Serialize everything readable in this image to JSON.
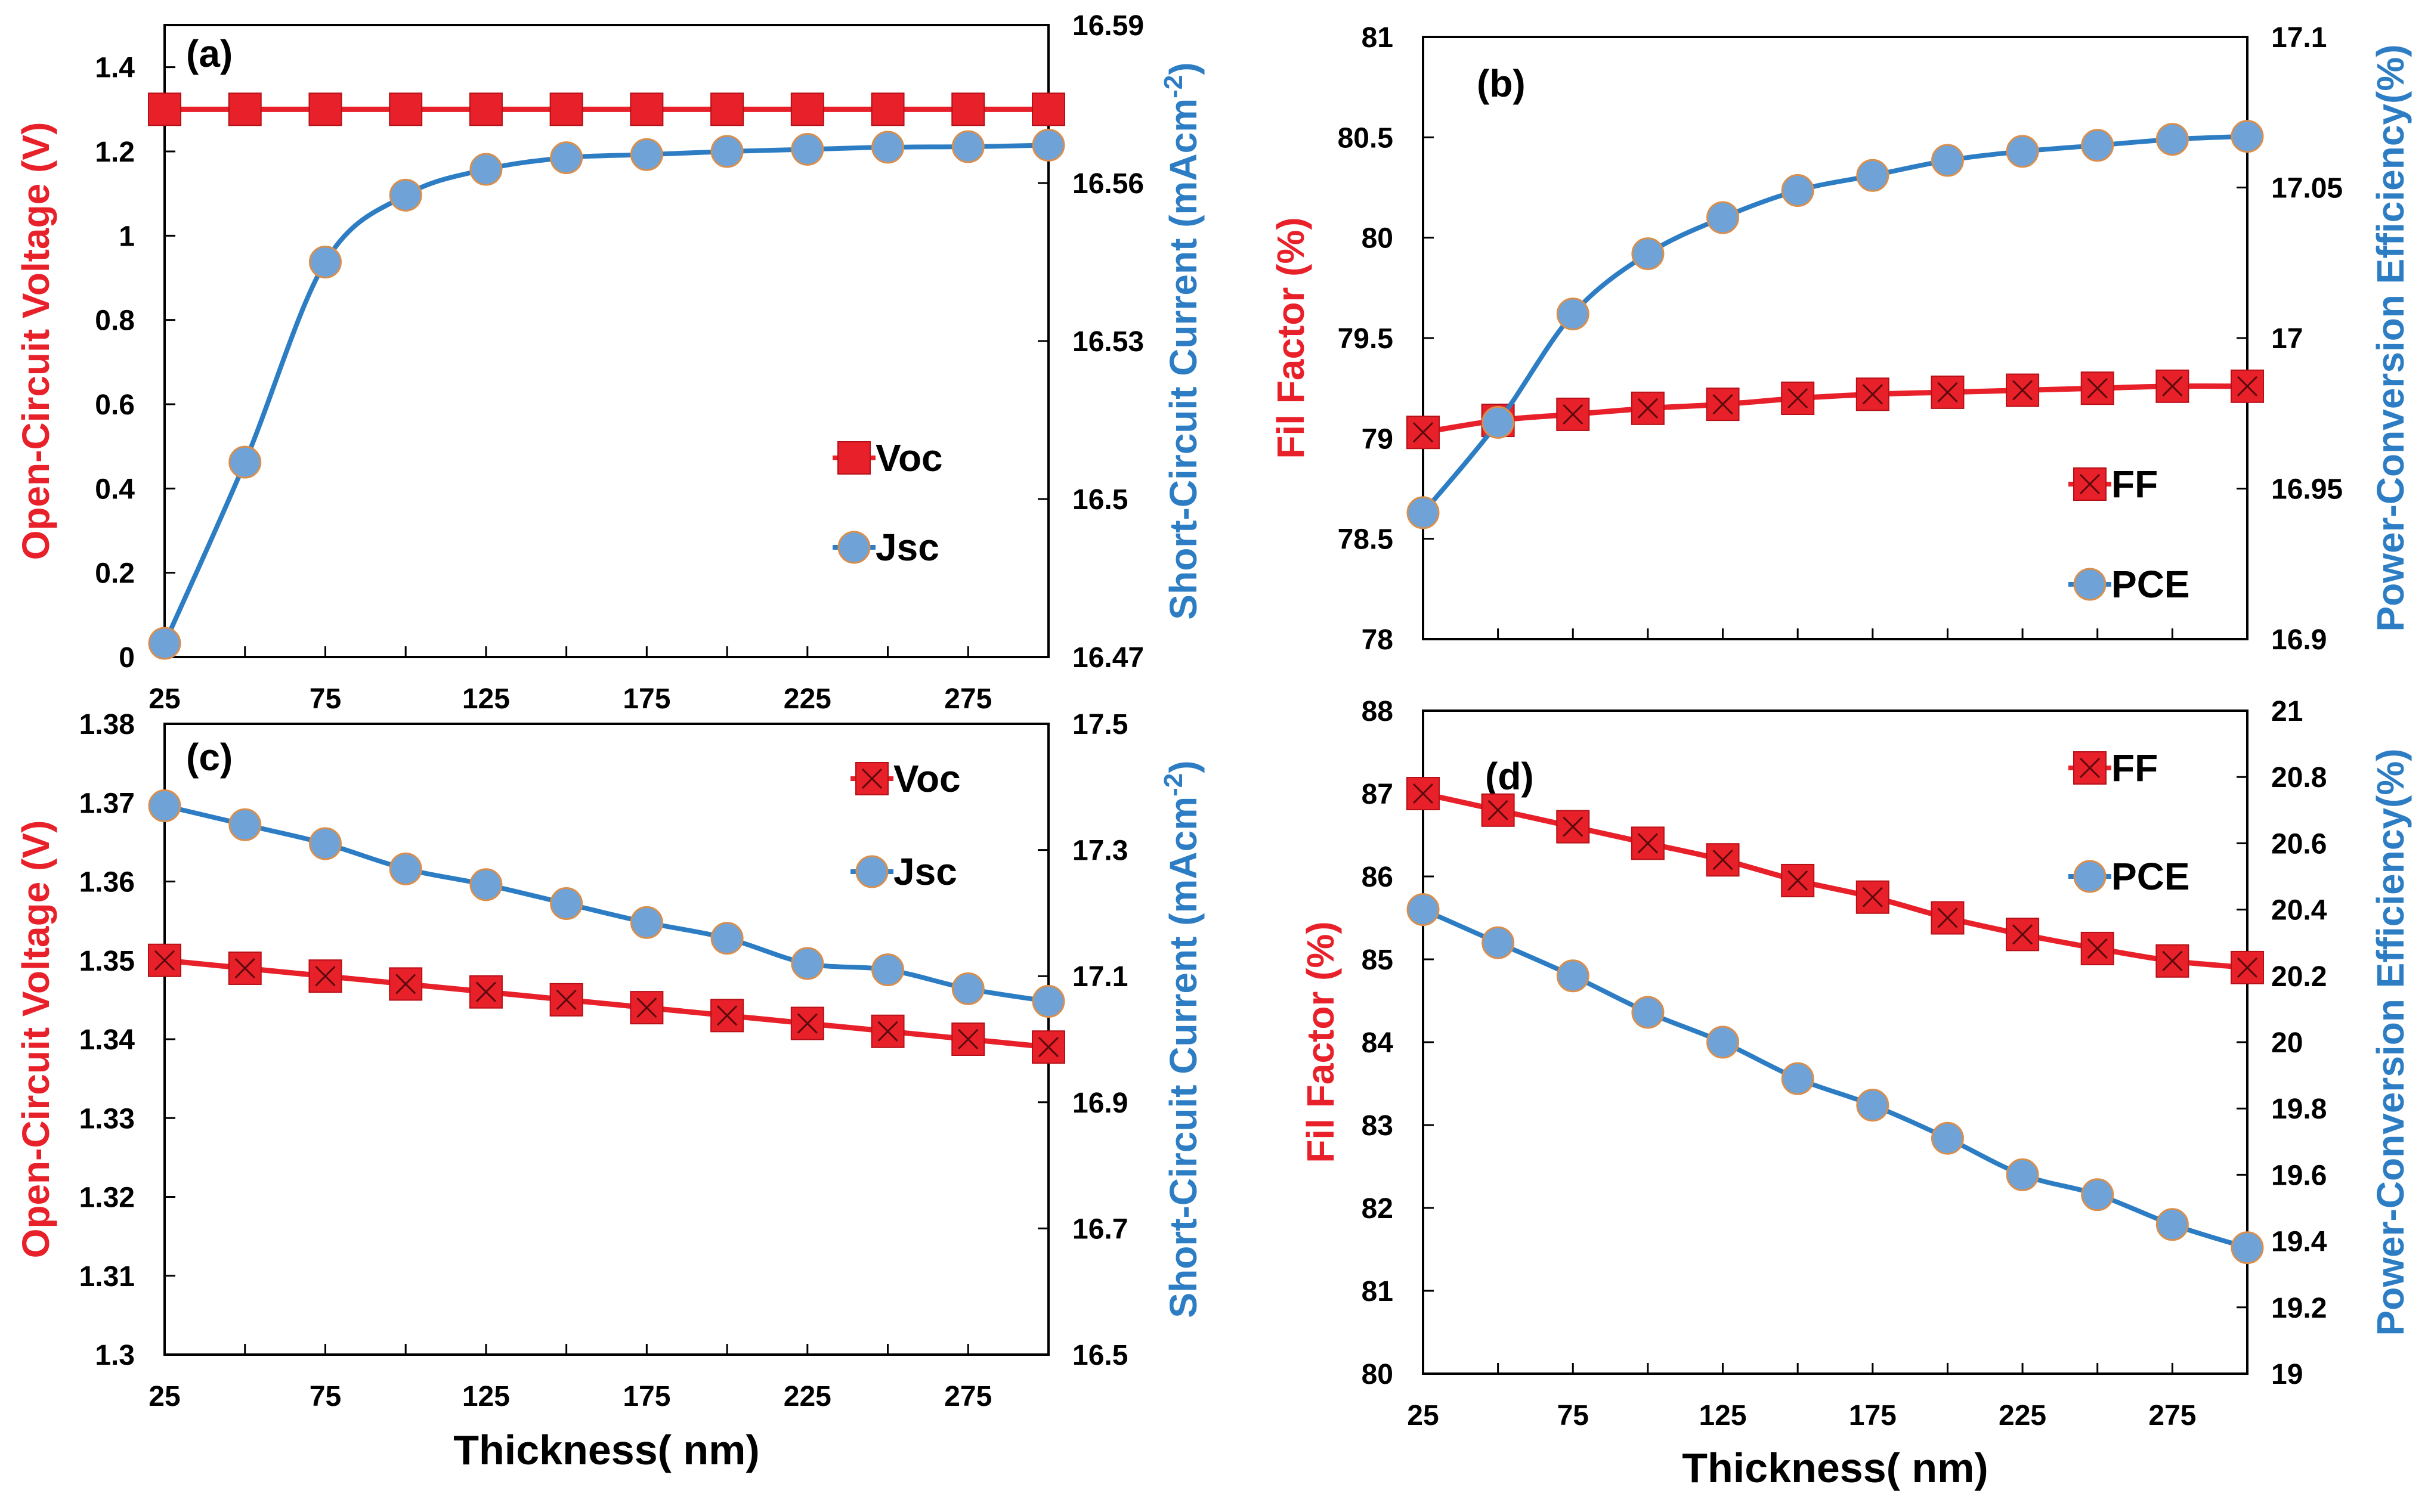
{
  "colors": {
    "left_series": "#e8202a",
    "left_series_dark": "#b51017",
    "right_series_line": "#2c7dc3",
    "right_series_marker": "#6fa3d8",
    "right_series_marker_edge": "#d98e4c",
    "axis": "#000000"
  },
  "chart_data": [
    {
      "type": "line",
      "panel_label": "(a)",
      "xlabel": "",
      "ylabel_left": "Open-Circuit Voltage (V)",
      "ylabel_right": "Short-Circuit Current (mAcm-2)",
      "ylabel_right_main": "Short-Circuit Current (mAcm",
      "ylabel_right_sup": "-2",
      "ylabel_right_close": ")",
      "x": [
        25,
        50,
        75,
        100,
        125,
        150,
        175,
        200,
        225,
        250,
        275,
        300
      ],
      "xlim": [
        25,
        300
      ],
      "x_ticks": [
        "25",
        "75",
        "125",
        "175",
        "225",
        "275"
      ],
      "ylim_left": [
        0,
        1.5
      ],
      "y_ticks_left": [
        "0",
        "0.2",
        "0.4",
        "0.6",
        "0.8",
        "1",
        "1.2",
        "1.4"
      ],
      "ylim_right": [
        16.47,
        16.59
      ],
      "y_ticks_right": [
        "16.47",
        "16.5",
        "16.53",
        "16.56",
        "16.59"
      ],
      "series": [
        {
          "name": "Voc",
          "axis": "left",
          "marker": "square",
          "values": [
            1.3,
            1.3,
            1.3,
            1.3,
            1.3,
            1.3,
            1.3,
            1.3,
            1.3,
            1.3,
            1.3,
            1.3
          ]
        },
        {
          "name": "Jsc",
          "axis": "right",
          "marker": "circle",
          "values": [
            16.4726,
            16.507,
            16.545,
            16.5577,
            16.5626,
            16.5648,
            16.5654,
            16.566,
            16.5664,
            16.5668,
            16.5669,
            16.5672
          ]
        }
      ],
      "legend": [
        "Voc",
        "Jsc"
      ],
      "legend_position": "middle-right"
    },
    {
      "type": "line",
      "panel_label": "(b)",
      "xlabel": "",
      "ylabel_left": "Fil Factor (%)",
      "ylabel_right": "Power-Conversion Efficiency(%)",
      "x": [
        25,
        50,
        75,
        100,
        125,
        150,
        175,
        200,
        225,
        250,
        275,
        300
      ],
      "xlim": [
        25,
        300
      ],
      "x_ticks": [],
      "ylim_left": [
        78,
        81
      ],
      "y_ticks_left": [
        "78",
        "78.5",
        "79",
        "79.5",
        "80",
        "80.5",
        "81"
      ],
      "ylim_right": [
        16.9,
        17.1
      ],
      "y_ticks_right": [
        "16.9",
        "16.95",
        "17",
        "17.05",
        "17.1"
      ],
      "series": [
        {
          "name": "FF",
          "axis": "left",
          "marker": "square-x",
          "values": [
            79.03,
            79.09,
            79.12,
            79.15,
            79.17,
            79.2,
            79.22,
            79.23,
            79.24,
            79.25,
            79.26,
            79.26
          ]
        },
        {
          "name": "PCE",
          "axis": "right",
          "marker": "circle",
          "values": [
            16.942,
            16.972,
            17.008,
            17.028,
            17.04,
            17.049,
            17.054,
            17.059,
            17.062,
            17.064,
            17.066,
            17.067
          ]
        }
      ],
      "legend": [
        "FF",
        "PCE"
      ],
      "legend_position": "bottom-right"
    },
    {
      "type": "line",
      "panel_label": "(c)",
      "xlabel": "Thickness( nm)",
      "ylabel_left": "Open-Circuit Voltage (V)",
      "ylabel_right": "Short-Circuit Current (mAcm-2)",
      "ylabel_right_main": "Short-Circuit Current (mAcm",
      "ylabel_right_sup": "-2",
      "ylabel_right_close": ")",
      "x": [
        25,
        50,
        75,
        100,
        125,
        150,
        175,
        200,
        225,
        250,
        275,
        300
      ],
      "xlim": [
        25,
        300
      ],
      "x_ticks": [
        "25",
        "75",
        "125",
        "175",
        "225",
        "275"
      ],
      "ylim_left": [
        1.3,
        1.38
      ],
      "y_ticks_left": [
        "1.3",
        "1.31",
        "1.32",
        "1.33",
        "1.34",
        "1.35",
        "1.36",
        "1.37",
        "1.38"
      ],
      "ylim_right": [
        16.5,
        17.5
      ],
      "y_ticks_right": [
        "16.5",
        "16.7",
        "16.9",
        "17.1",
        "17.3",
        "17.5"
      ],
      "series": [
        {
          "name": "Voc",
          "axis": "left",
          "marker": "square-x",
          "values": [
            1.35,
            1.349,
            1.348,
            1.347,
            1.346,
            1.345,
            1.344,
            1.343,
            1.342,
            1.341,
            1.34,
            1.339
          ]
        },
        {
          "name": "Jsc",
          "axis": "right",
          "marker": "circle",
          "values": [
            17.37,
            17.34,
            17.31,
            17.27,
            17.245,
            17.215,
            17.185,
            17.16,
            17.12,
            17.11,
            17.08,
            17.06
          ]
        }
      ],
      "legend": [
        "Voc",
        "Jsc"
      ],
      "legend_position": "top-right"
    },
    {
      "type": "line",
      "panel_label": "(d)",
      "xlabel": "Thickness( nm)",
      "ylabel_left": "Fil Factor (%)",
      "ylabel_right": "Power-Conversion Efficiency(%)",
      "x": [
        25,
        50,
        75,
        100,
        125,
        150,
        175,
        200,
        225,
        250,
        275,
        300
      ],
      "xlim": [
        25,
        300
      ],
      "x_ticks": [
        "25",
        "75",
        "125",
        "175",
        "225",
        "275"
      ],
      "ylim_left": [
        80,
        88
      ],
      "y_ticks_left": [
        "80",
        "81",
        "82",
        "83",
        "84",
        "85",
        "86",
        "87",
        "88"
      ],
      "ylim_right": [
        19,
        21
      ],
      "y_ticks_right": [
        "19",
        "19.2",
        "19.4",
        "19.6",
        "19.8",
        "20",
        "20.2",
        "20.4",
        "20.6",
        "20.8",
        "21"
      ],
      "series": [
        {
          "name": "FF",
          "axis": "left",
          "marker": "square-x",
          "values": [
            87.0,
            86.8,
            86.6,
            86.4,
            86.2,
            85.95,
            85.75,
            85.5,
            85.3,
            85.13,
            84.98,
            84.9
          ]
        },
        {
          "name": "PCE",
          "axis": "right",
          "marker": "circle",
          "values": [
            20.4,
            20.3,
            20.2,
            20.09,
            20.0,
            19.89,
            19.81,
            19.71,
            19.6,
            19.54,
            19.45,
            19.38
          ]
        }
      ],
      "legend": [
        "FF",
        "PCE"
      ],
      "legend_position": "top-right"
    }
  ]
}
